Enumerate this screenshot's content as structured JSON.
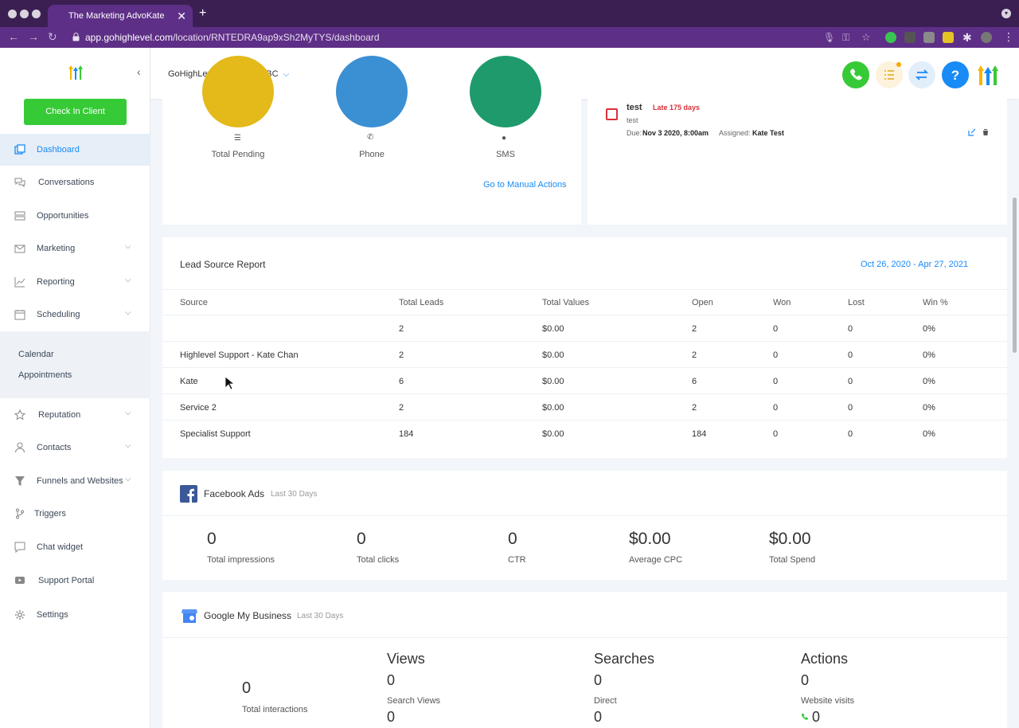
{
  "browser": {
    "tab_title": "The Marketing AdvoKate",
    "url_host": "app.gohighlevel.com",
    "url_path": "/location/RNTEDRA9ap9xSh2MyTYS/dashboard"
  },
  "sidebar": {
    "check_in_label": "Check In Client",
    "items": [
      {
        "label": "Dashboard",
        "icon": "dashboard-icon"
      },
      {
        "label": "Conversations",
        "icon": "chat-bubbles-icon"
      },
      {
        "label": "Opportunities",
        "icon": "stack-icon"
      },
      {
        "label": "Marketing",
        "icon": "envelope-icon"
      },
      {
        "label": "Reporting",
        "icon": "chart-line-icon"
      },
      {
        "label": "Scheduling",
        "icon": "calendar-icon"
      },
      {
        "label": "Reputation",
        "icon": "star-icon"
      },
      {
        "label": "Contacts",
        "icon": "person-icon"
      },
      {
        "label": "Funnels and Websites",
        "icon": "funnel-icon"
      },
      {
        "label": "Triggers",
        "icon": "branch-icon"
      },
      {
        "label": "Chat widget",
        "icon": "chat-widget-icon"
      },
      {
        "label": "Support Portal",
        "icon": "video-icon"
      },
      {
        "label": "Settings",
        "icon": "gear-icon"
      }
    ],
    "scheduling_sub": [
      "Calendar",
      "Appointments"
    ]
  },
  "header": {
    "location": "GoHighLevel -- Burnaby, BC"
  },
  "manual_actions": {
    "stats": [
      {
        "label": "Total Pending",
        "color": "#e4b91a"
      },
      {
        "label": "Phone",
        "color": "#3b8fd3"
      },
      {
        "label": "SMS",
        "color": "#1e9a6c"
      }
    ],
    "link": "Go to Manual Actions"
  },
  "task": {
    "title": "test",
    "late": "Late 175 days",
    "desc": "test",
    "due_label": "Due:",
    "due_value": "Nov 3 2020, 8:00am",
    "assigned_label": "Assigned:",
    "assigned_value": "Kate Test"
  },
  "lead_source": {
    "title": "Lead Source Report",
    "date_range": "Oct 26, 2020 - Apr 27, 2021",
    "headers": [
      "Source",
      "Total Leads",
      "Total Values",
      "Open",
      "Won",
      "Lost",
      "Win %"
    ],
    "rows": [
      [
        "",
        "2",
        "$0.00",
        "2",
        "0",
        "0",
        "0%"
      ],
      [
        "Highlevel Support - Kate Chan",
        "2",
        "$0.00",
        "2",
        "0",
        "0",
        "0%"
      ],
      [
        "Kate",
        "6",
        "$0.00",
        "6",
        "0",
        "0",
        "0%"
      ],
      [
        "Service 2",
        "2",
        "$0.00",
        "2",
        "0",
        "0",
        "0%"
      ],
      [
        "Specialist Support",
        "184",
        "$0.00",
        "184",
        "0",
        "0",
        "0%"
      ]
    ]
  },
  "facebook": {
    "title": "Facebook Ads",
    "period": "Last 30 Days",
    "metrics": [
      {
        "value": "0",
        "label": "Total impressions"
      },
      {
        "value": "0",
        "label": "Total clicks"
      },
      {
        "value": "0",
        "label": "CTR"
      },
      {
        "value": "$0.00",
        "label": "Average CPC"
      },
      {
        "value": "$0.00",
        "label": "Total Spend"
      }
    ]
  },
  "gmb": {
    "title": "Google My Business",
    "period": "Last 30 Days",
    "total_value": "0",
    "total_label": "Total interactions",
    "views_head": "Views",
    "views_value": "0",
    "views_sub_label": "Search Views",
    "views_sub_value": "0",
    "searches_head": "Searches",
    "searches_value": "0",
    "searches_sub_label": "Direct",
    "searches_sub_value": "0",
    "actions_head": "Actions",
    "actions_value": "0",
    "actions_sub_label": "Website visits",
    "actions_sub_value": "0"
  }
}
